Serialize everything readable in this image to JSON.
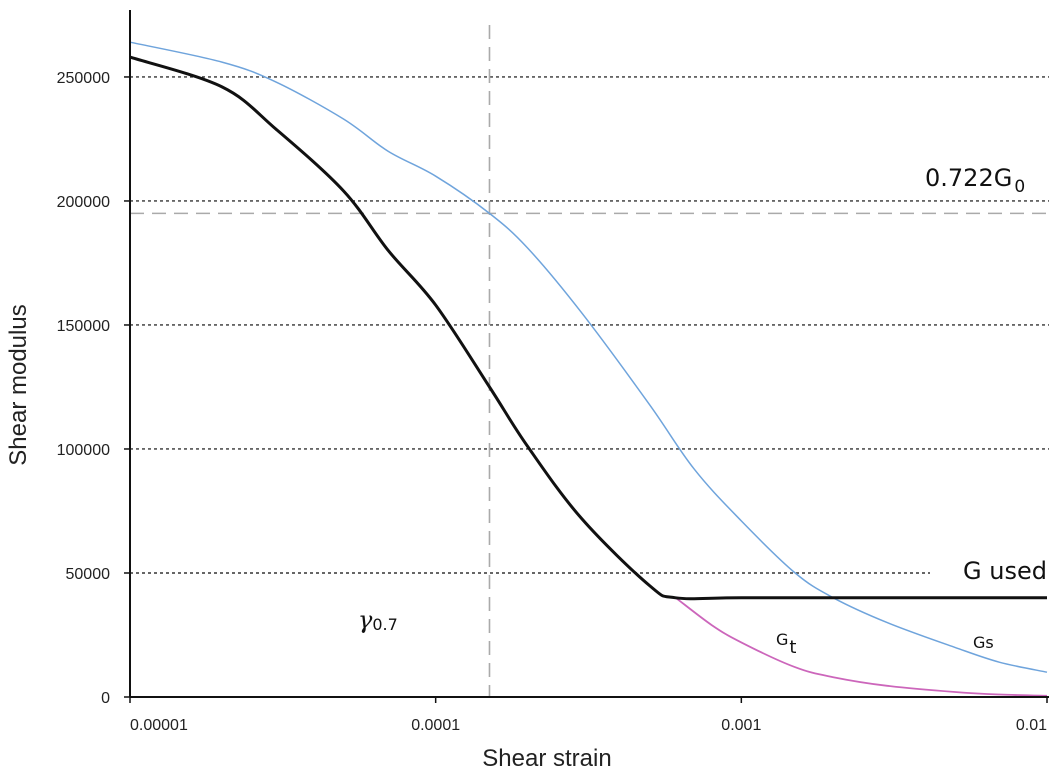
{
  "chart_data": {
    "type": "line",
    "xlabel": "Shear strain",
    "ylabel": "Shear modulus",
    "x_scale": "log",
    "xlim": [
      1e-05,
      0.01
    ],
    "ylim": [
      0,
      277000
    ],
    "x_ticks": [
      {
        "value": 1e-05,
        "label": "0.00001"
      },
      {
        "value": 0.0001,
        "label": "0.0001"
      },
      {
        "value": 0.001,
        "label": "0.001"
      },
      {
        "value": 0.01,
        "label": "0.01"
      }
    ],
    "y_ticks": [
      {
        "value": 0,
        "label": "0"
      },
      {
        "value": 50000,
        "label": "50000"
      },
      {
        "value": 100000,
        "label": "100000"
      },
      {
        "value": 150000,
        "label": "150000"
      },
      {
        "value": 200000,
        "label": "200000"
      },
      {
        "value": 250000,
        "label": "250000"
      }
    ],
    "grid": "horizontal dotted",
    "reference_lines": {
      "dotted_y": [
        250000,
        200000,
        150000,
        100000,
        50000
      ],
      "dashed_y": 195000,
      "dashed_x": 0.00015
    },
    "series": [
      {
        "name": "Gs",
        "color": "#6fa4dc",
        "x": [
          1e-05,
          2e-05,
          3e-05,
          5e-05,
          7e-05,
          0.0001,
          0.00015,
          0.0002,
          0.0003,
          0.0005,
          0.0007,
          0.001,
          0.0015,
          0.002,
          0.003,
          0.005,
          0.007,
          0.01
        ],
        "y": [
          264000,
          256000,
          248000,
          233000,
          220000,
          210000,
          195000,
          181000,
          155000,
          118000,
          92000,
          71000,
          50000,
          40000,
          30000,
          20000,
          14000,
          10000
        ]
      },
      {
        "name": "Gt",
        "color": "#cc66bb",
        "x": [
          0.00061,
          0.0008,
          0.001,
          0.0015,
          0.002,
          0.003,
          0.005,
          0.007,
          0.01
        ],
        "y": [
          40000,
          29000,
          22000,
          12000,
          8000,
          4500,
          2000,
          1000,
          500
        ]
      },
      {
        "name": "G used",
        "color": "#111111",
        "x": [
          1e-05,
          2e-05,
          3e-05,
          5e-05,
          7e-05,
          0.0001,
          0.00015,
          0.0002,
          0.0003,
          0.0005,
          0.00061,
          0.001,
          0.003,
          0.01
        ],
        "y": [
          258000,
          246000,
          229000,
          204000,
          180000,
          158000,
          125000,
          101000,
          72000,
          45000,
          40000,
          40000,
          40000,
          40000
        ]
      }
    ],
    "annotations": {
      "g_ratio": "0.722G",
      "g_ratio_sub": "0",
      "g_used": "G used",
      "gamma": "γ",
      "gamma_sub": "0.7",
      "gt": "G",
      "gt_sub": "t",
      "gs": "Gs"
    }
  }
}
